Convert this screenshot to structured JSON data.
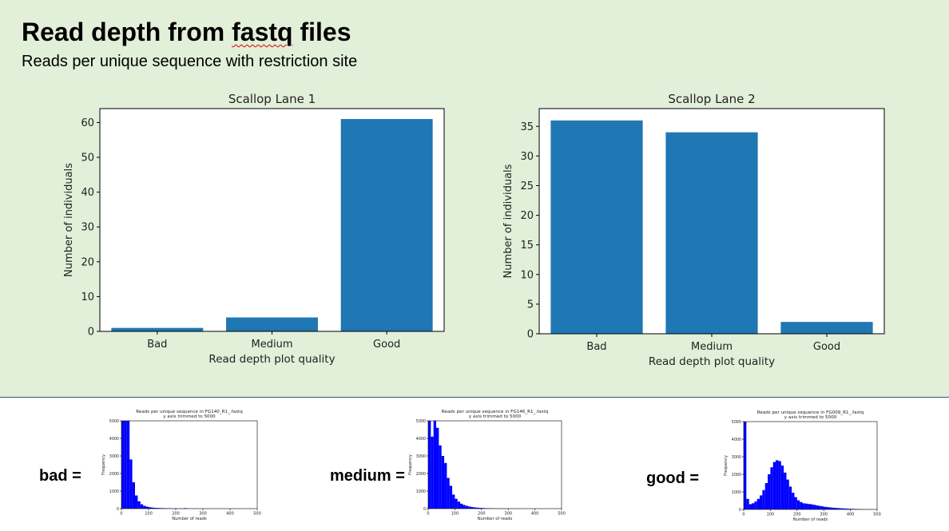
{
  "header": {
    "title_prefix": "Read depth from ",
    "title_squiggle": "fastq",
    "title_suffix": " files",
    "subtitle": "Reads per unique sequence with restriction site"
  },
  "colors": {
    "top_background": "#e2efd9",
    "bar": "#1f77b4",
    "hist": "#0000ff",
    "divider": "#2e5a7a"
  },
  "chart_data": [
    {
      "type": "bar",
      "title": "Scallop Lane 1",
      "categories": [
        "Bad",
        "Medium",
        "Good"
      ],
      "values": [
        1,
        4,
        61
      ],
      "xlabel": "Read depth plot quality",
      "ylabel": "Number of individuals",
      "ylim": [
        0,
        64
      ],
      "yticks": [
        0,
        10,
        20,
        30,
        40,
        50,
        60
      ],
      "grid": false
    },
    {
      "type": "bar",
      "title": "Scallop Lane 2",
      "categories": [
        "Bad",
        "Medium",
        "Good"
      ],
      "values": [
        36,
        34,
        2
      ],
      "xlabel": "Read depth plot quality",
      "ylabel": "Number of individuals",
      "ylim": [
        0,
        38
      ],
      "yticks": [
        0,
        5,
        10,
        15,
        20,
        25,
        30,
        35
      ],
      "grid": false
    },
    {
      "type": "bar",
      "title": "Reads per unique sequence in FG140_R1_.fastq\ny axis trimmed to 5000",
      "xlabel": "Number of reads",
      "ylabel": "Frequency",
      "bin_width": 10,
      "x_start": 0,
      "values": [
        5000,
        5000,
        5000,
        2800,
        1500,
        750,
        420,
        250,
        160,
        110,
        80,
        60,
        45,
        38,
        30,
        26,
        22,
        18,
        16,
        14,
        12,
        10,
        9,
        30,
        7,
        6,
        5,
        5,
        4,
        4,
        3,
        3,
        3,
        2,
        2,
        2,
        2,
        2,
        1,
        1,
        1,
        1,
        1,
        1,
        1,
        1,
        1,
        1,
        1,
        1
      ],
      "xlim": [
        0,
        500
      ],
      "ylim": [
        0,
        5000
      ],
      "xticks": [
        0,
        100,
        200,
        300,
        400,
        500
      ],
      "yticks": [
        0,
        1000,
        2000,
        3000,
        4000,
        5000
      ],
      "label": "bad ="
    },
    {
      "type": "bar",
      "title": "Reads per unique sequence in FG146_R1_.fastq\ny axis trimmed to 5000",
      "xlabel": "Number of reads",
      "ylabel": "Frequency",
      "bin_width": 10,
      "x_start": 0,
      "values": [
        5000,
        4100,
        5000,
        4600,
        3600,
        3000,
        2600,
        1750,
        1300,
        800,
        560,
        400,
        280,
        210,
        160,
        120,
        90,
        70,
        55,
        45,
        35,
        28,
        22,
        18,
        15,
        12,
        10,
        8,
        7,
        6,
        5,
        4,
        4,
        3,
        3,
        2,
        2,
        2,
        1,
        1,
        1,
        1,
        1,
        1,
        1,
        1,
        1,
        1,
        1,
        1
      ],
      "xlim": [
        0,
        500
      ],
      "ylim": [
        0,
        5000
      ],
      "xticks": [
        0,
        100,
        200,
        300,
        400,
        500
      ],
      "yticks": [
        0,
        1000,
        2000,
        3000,
        4000,
        5000
      ],
      "label": "medium ="
    },
    {
      "type": "bar",
      "title": "Reads per unique sequence in FG009_R1_.fastq\ny axis trimmed to 5000",
      "xlabel": "Number of reads",
      "ylabel": "Frequency",
      "bin_width": 10,
      "x_start": 0,
      "values": [
        5000,
        600,
        300,
        350,
        450,
        600,
        800,
        1100,
        1500,
        2000,
        2400,
        2700,
        2800,
        2750,
        2500,
        2100,
        1700,
        1300,
        950,
        700,
        520,
        420,
        350,
        330,
        310,
        290,
        260,
        230,
        200,
        175,
        150,
        130,
        115,
        100,
        88,
        76,
        66,
        56,
        48,
        40,
        34,
        28,
        24,
        20,
        16,
        13,
        10,
        8,
        6,
        5
      ],
      "xlim": [
        0,
        500
      ],
      "ylim": [
        0,
        5000
      ],
      "xticks": [
        0,
        100,
        200,
        300,
        400,
        500
      ],
      "yticks": [
        0,
        1000,
        2000,
        3000,
        4000,
        5000
      ],
      "label": "good ="
    }
  ]
}
